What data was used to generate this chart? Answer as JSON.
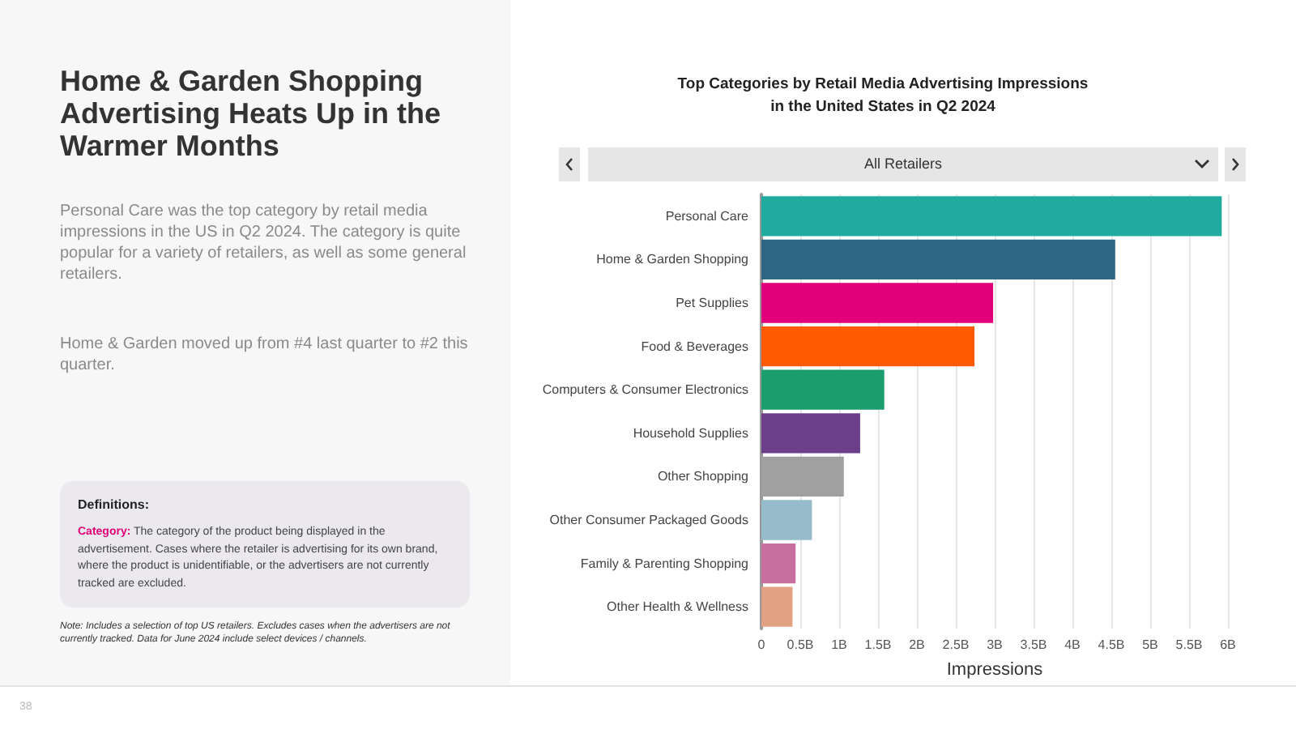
{
  "chart_data": {
    "type": "bar",
    "orientation": "horizontal",
    "title": "Top Categories by Retail Media Advertising Impressions\nin the United States in Q2 2024",
    "xlabel": "Impressions",
    "categories": [
      "Personal Care",
      "Home & Garden Shopping",
      "Pet Supplies",
      "Food & Beverages",
      "Computers & Consumer Electronics",
      "Household Supplies",
      "Other Shopping",
      "Other Consumer Packaged Goods",
      "Family & Parenting Shopping",
      "Other Health & Wellness"
    ],
    "values": [
      5.92,
      4.55,
      2.98,
      2.74,
      1.58,
      1.27,
      1.06,
      0.65,
      0.44,
      0.4
    ],
    "colors": [
      "#1fab9f",
      "#2e6783",
      "#e2007a",
      "#ff5a00",
      "#1a9e6e",
      "#6b3f8a",
      "#a0a0a0",
      "#96bccc",
      "#c96fa0",
      "#e3a183"
    ],
    "xlim": [
      0,
      6
    ],
    "xticks": [
      0,
      {
        "value": 0.5,
        "label": "0.5B"
      },
      {
        "value": 1,
        "label": "1B"
      },
      {
        "value": 1.5,
        "label": "1.5B"
      },
      {
        "value": 2,
        "label": "2B"
      },
      {
        "value": 2.5,
        "label": "2.5B"
      },
      {
        "value": 3,
        "label": "3B"
      },
      {
        "value": 3.5,
        "label": "3.5B"
      },
      {
        "value": 4,
        "label": "4B"
      },
      {
        "value": 4.5,
        "label": "4.5B"
      },
      {
        "value": 5,
        "label": "5B"
      },
      {
        "value": 5.5,
        "label": "5.5B"
      },
      {
        "value": 6,
        "label": "6B"
      }
    ],
    "grid": "x",
    "annotations": [
      "Home & Garden Shopping Advertising Heats Up in the Warmer Months",
      "Personal Care was the top category by retail media impressions in the US in Q2 2024. The category is quite popular for a variety of retailers, as well as some general retailers.",
      "Home & Garden moved up from #4 last quarter to #2 this quarter.",
      "Definitions:",
      "Category: The category of the product being displayed in the advertisement. Cases where the retailer is advertising for its own brand, where the product is unidentifiable, or the advertisers are not currently tracked are excluded.",
      "Note: Includes a selection of top US retailers. Excludes cases when the advertisers are not currently tracked. Data for June 2024 include select devices / channels.",
      "All Retailers",
      "38"
    ]
  }
}
